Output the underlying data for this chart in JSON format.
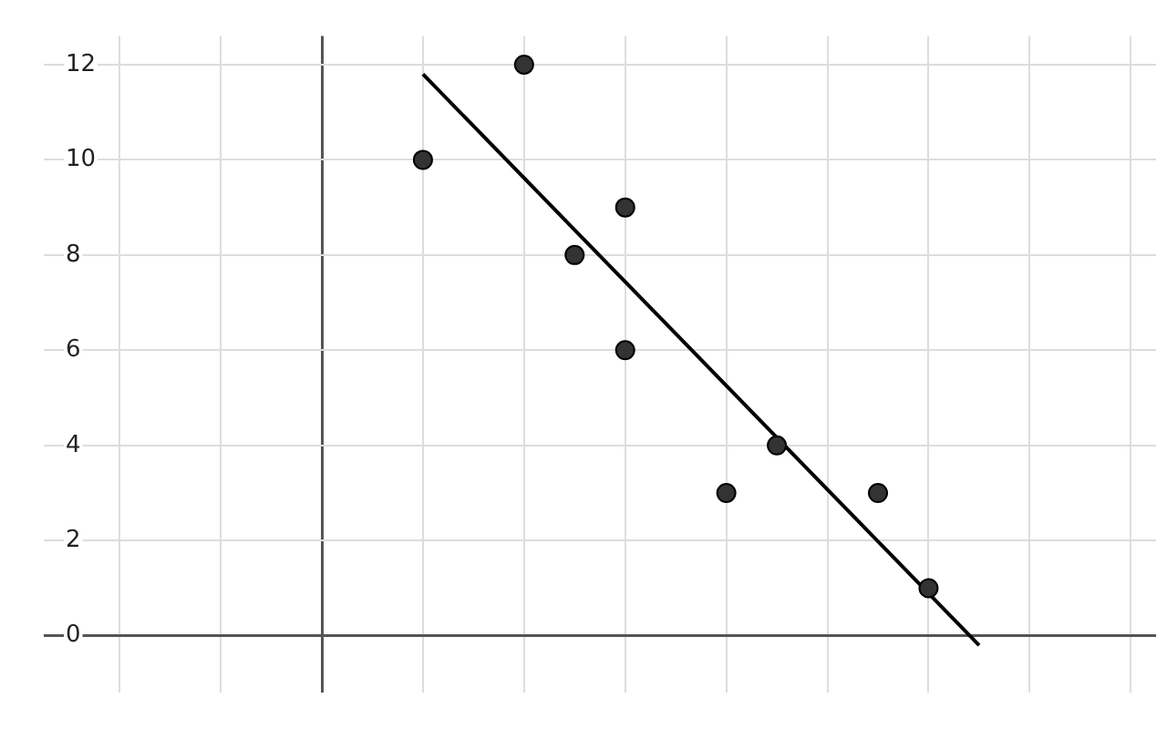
{
  "chart_data": {
    "type": "scatter",
    "categories": [
      null,
      null,
      null,
      null,
      null,
      null,
      null,
      null,
      null,
      null,
      null,
      null,
      null,
      null,
      null,
      null,
      null,
      null,
      null,
      null,
      null,
      null
    ],
    "ylim": [
      -1.2,
      12.6
    ],
    "yticks": [
      0,
      2,
      4,
      6,
      8,
      10,
      12
    ],
    "tick_labels": "y",
    "grid": true,
    "legend": false,
    "marker": "circle",
    "series": [
      {
        "color": "#333333",
        "values": [
          null,
          null,
          null,
          null,
          null,
          null,
          null,
          10,
          null,
          12,
          8,
          9,
          null,
          3,
          4,
          null,
          3,
          1,
          null,
          null,
          null,
          null
        ]
      },
      {
        "color": "#333333",
        "values": [
          null,
          null,
          null,
          null,
          null,
          null,
          null,
          null,
          null,
          null,
          null,
          6,
          null,
          null,
          null,
          null,
          null,
          null,
          null,
          null,
          null,
          null
        ]
      },
      {
        "type": "line",
        "color": "#000000",
        "marker": "none",
        "values": [
          null,
          null,
          null,
          null,
          null,
          null,
          null,
          11.8,
          null,
          null,
          null,
          null,
          null,
          null,
          null,
          null,
          null,
          null,
          -0.2,
          null,
          null,
          null
        ]
      }
    ]
  }
}
